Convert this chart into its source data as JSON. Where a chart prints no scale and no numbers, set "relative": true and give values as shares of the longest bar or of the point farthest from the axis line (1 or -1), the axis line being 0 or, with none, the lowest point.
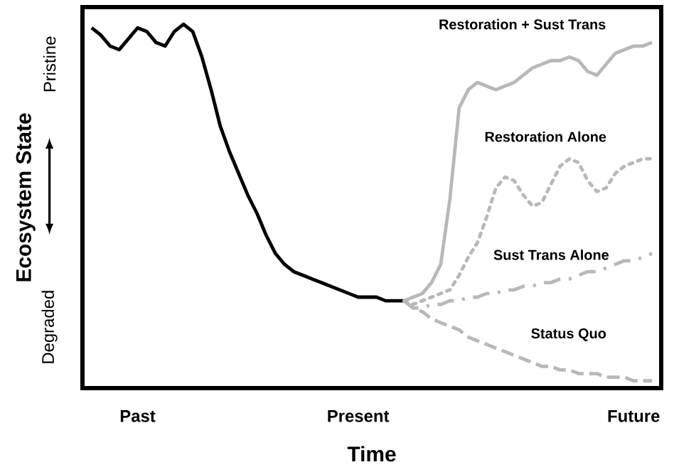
{
  "chart_data": {
    "type": "line",
    "relative": true,
    "xlabel": "Time",
    "ylabel": "Ecosystem State",
    "categories": [
      null,
      null,
      null,
      null,
      null,
      null,
      "Past",
      null,
      null,
      null,
      null,
      null,
      null,
      null,
      null,
      null,
      null,
      null,
      null,
      null,
      null,
      null,
      null,
      null,
      null,
      null,
      null,
      null,
      null,
      null,
      "Present",
      null,
      null,
      null,
      null,
      null,
      null,
      null,
      null,
      null,
      null,
      null,
      null,
      null,
      null,
      null,
      null,
      null,
      null,
      null,
      null,
      null,
      null,
      null,
      null,
      null,
      null,
      null,
      null,
      null,
      "Future",
      null,
      null,
      null
    ],
    "annotations": [
      "Pristine",
      "Degraded"
    ],
    "series": [
      {
        "color": "#000000",
        "line_style": "solid",
        "values": [
          null,
          0.99,
          0.97,
          0.94,
          0.93,
          0.96,
          0.99,
          0.98,
          0.95,
          0.94,
          0.98,
          1.0,
          0.98,
          0.91,
          0.82,
          0.72,
          0.65,
          0.59,
          0.53,
          0.48,
          0.42,
          0.37,
          0.34,
          0.32,
          0.31,
          0.3,
          0.29,
          0.28,
          0.27,
          0.26,
          0.25,
          0.25,
          0.25,
          0.24,
          0.24,
          0.24,
          null,
          null,
          null,
          null,
          null,
          null,
          null,
          null,
          null,
          null,
          null,
          null,
          null,
          null,
          null,
          null,
          null,
          null,
          null,
          null,
          null,
          null,
          null,
          null,
          null,
          null,
          null,
          null
        ]
      },
      {
        "name": "Restoration + Sust Trans",
        "color": "#b8b8b8",
        "line_style": "solid",
        "values": [
          null,
          null,
          null,
          null,
          null,
          null,
          null,
          null,
          null,
          null,
          null,
          null,
          null,
          null,
          null,
          null,
          null,
          null,
          null,
          null,
          null,
          null,
          null,
          null,
          null,
          null,
          null,
          null,
          null,
          null,
          null,
          null,
          null,
          null,
          null,
          0.24,
          0.25,
          0.26,
          0.29,
          0.34,
          0.52,
          0.77,
          0.82,
          0.84,
          0.83,
          0.82,
          0.83,
          0.84,
          0.86,
          0.88,
          0.89,
          0.9,
          0.9,
          0.91,
          0.9,
          0.87,
          0.86,
          0.89,
          0.92,
          0.93,
          0.94,
          0.94,
          0.95,
          null
        ]
      },
      {
        "name": "Restoration Alone",
        "color": "#b8b8b8",
        "line_style": "dotted",
        "values": [
          null,
          null,
          null,
          null,
          null,
          null,
          null,
          null,
          null,
          null,
          null,
          null,
          null,
          null,
          null,
          null,
          null,
          null,
          null,
          null,
          null,
          null,
          null,
          null,
          null,
          null,
          null,
          null,
          null,
          null,
          null,
          null,
          null,
          null,
          null,
          0.24,
          0.23,
          0.24,
          0.25,
          0.26,
          0.27,
          0.31,
          0.36,
          0.4,
          0.47,
          0.55,
          0.58,
          0.57,
          0.53,
          0.5,
          0.51,
          0.56,
          0.61,
          0.63,
          0.62,
          0.57,
          0.54,
          0.55,
          0.59,
          0.61,
          0.62,
          0.63,
          0.63,
          null
        ]
      },
      {
        "name": "Sust Trans Alone",
        "color": "#b8b8b8",
        "line_style": "dashdot",
        "values": [
          null,
          null,
          null,
          null,
          null,
          null,
          null,
          null,
          null,
          null,
          null,
          null,
          null,
          null,
          null,
          null,
          null,
          null,
          null,
          null,
          null,
          null,
          null,
          null,
          null,
          null,
          null,
          null,
          null,
          null,
          null,
          null,
          null,
          null,
          null,
          0.24,
          0.22,
          0.22,
          0.23,
          0.23,
          0.24,
          0.24,
          0.25,
          0.25,
          0.26,
          0.26,
          0.27,
          0.27,
          0.28,
          0.28,
          0.29,
          0.29,
          0.3,
          0.3,
          0.31,
          0.32,
          0.32,
          0.33,
          0.34,
          0.35,
          0.35,
          0.36,
          0.37,
          null
        ]
      },
      {
        "name": "Status Quo",
        "color": "#b8b8b8",
        "line_style": "dashed",
        "values": [
          null,
          null,
          null,
          null,
          null,
          null,
          null,
          null,
          null,
          null,
          null,
          null,
          null,
          null,
          null,
          null,
          null,
          null,
          null,
          null,
          null,
          null,
          null,
          null,
          null,
          null,
          null,
          null,
          null,
          null,
          null,
          null,
          null,
          null,
          null,
          0.24,
          0.22,
          0.21,
          0.19,
          0.18,
          0.17,
          0.16,
          0.14,
          0.13,
          0.12,
          0.11,
          0.1,
          0.09,
          0.08,
          0.07,
          0.06,
          0.06,
          0.05,
          0.05,
          0.04,
          0.04,
          0.04,
          0.03,
          0.03,
          0.03,
          0.02,
          0.02,
          0.02,
          null
        ]
      }
    ]
  }
}
